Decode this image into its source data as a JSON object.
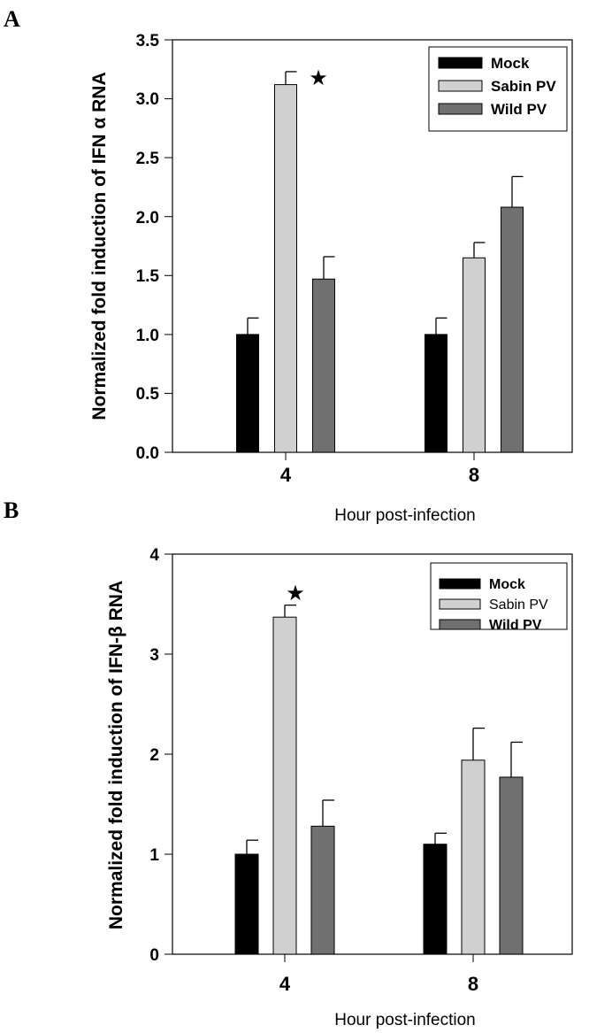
{
  "panels": [
    {
      "letter": "A",
      "ylabel": "Normalized fold induction of IFN α RNA",
      "xlabel": "Hour post-infection",
      "yticks": [
        "0.0",
        "0.5",
        "1.0",
        "1.5",
        "2.0",
        "2.5",
        "3.0",
        "3.5"
      ],
      "legend": [
        "Mock",
        "Sabin PV",
        "Wild PV"
      ],
      "annotation": "★"
    },
    {
      "letter": "B",
      "ylabel": "Normalized fold induction of IFN-β RNA",
      "xlabel": "Hour post-infection",
      "yticks": [
        "0",
        "1",
        "2",
        "3",
        "4"
      ],
      "legend": [
        "Mock",
        "Sabin PV",
        "Wild PV"
      ],
      "annotation": "★"
    }
  ],
  "colors": {
    "mock": "#000000",
    "sabin": "#d0d0d0",
    "wild": "#707070",
    "axis": "#000000"
  },
  "chart_data": [
    {
      "type": "bar",
      "title": "A",
      "xlabel": "Hour post-infection",
      "ylabel": "Normalized fold induction of IFN α RNA",
      "categories": [
        "4",
        "8"
      ],
      "ylim": [
        0,
        3.5
      ],
      "legend_position": "top-right",
      "series": [
        {
          "name": "Mock",
          "values": [
            1.0,
            1.0
          ],
          "errors": [
            0.14,
            0.14
          ]
        },
        {
          "name": "Sabin PV",
          "values": [
            3.12,
            1.65
          ],
          "errors": [
            0.11,
            0.13
          ]
        },
        {
          "name": "Wild PV",
          "values": [
            1.47,
            2.08
          ],
          "errors": [
            0.19,
            0.26
          ]
        }
      ],
      "annotations": [
        {
          "text": "★",
          "category": "4",
          "series": "Sabin PV",
          "meaning": "significant"
        }
      ]
    },
    {
      "type": "bar",
      "title": "B",
      "xlabel": "Hour post-infection",
      "ylabel": "Normalized fold induction of IFN-β RNA",
      "categories": [
        "4",
        "8"
      ],
      "ylim": [
        0,
        4
      ],
      "legend_position": "top-right",
      "series": [
        {
          "name": "Mock",
          "values": [
            1.0,
            1.1
          ],
          "errors": [
            0.14,
            0.11
          ]
        },
        {
          "name": "Sabin PV",
          "values": [
            3.37,
            1.94
          ],
          "errors": [
            0.12,
            0.32
          ]
        },
        {
          "name": "Wild PV",
          "values": [
            1.28,
            1.77
          ],
          "errors": [
            0.26,
            0.35
          ]
        }
      ],
      "annotations": [
        {
          "text": "★",
          "category": "4",
          "series": "Sabin PV",
          "meaning": "significant"
        }
      ]
    }
  ]
}
